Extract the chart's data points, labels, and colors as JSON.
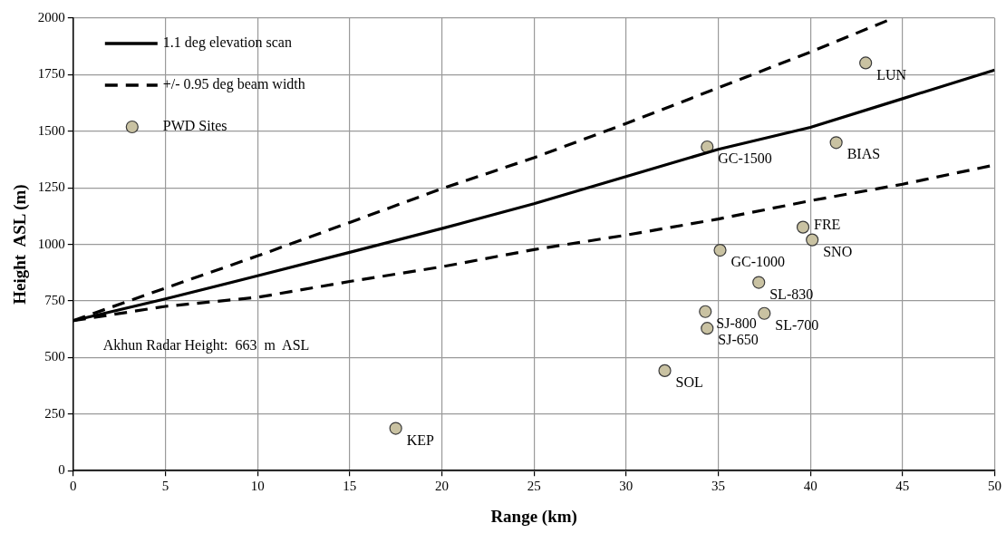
{
  "chart_data": {
    "type": "line",
    "xlabel": "Range (km)",
    "ylabel": "Height  ASL (m)",
    "xlim": [
      0,
      50
    ],
    "xticks": [
      0,
      5,
      10,
      15,
      20,
      25,
      30,
      35,
      40,
      45,
      50
    ],
    "ylim": [
      0,
      2000
    ],
    "yticks": [
      0,
      250,
      500,
      750,
      1000,
      1250,
      1500,
      1750,
      2000
    ],
    "grid": true,
    "legend": "top left",
    "series": [
      {
        "name": "1.1 deg elevation scan",
        "color": "#000000",
        "line_style": "solid",
        "x": [
          0,
          5,
          10,
          15,
          20,
          25,
          30,
          35,
          40,
          45,
          50
        ],
        "values": [
          663,
          759,
          861,
          965,
          1070,
          1180,
          1300,
          1420,
          1517,
          1644,
          1771
        ]
      },
      {
        "name": "+/- 0.95 deg beam width",
        "color": "#000000",
        "line_style": "dashed",
        "x": [
          0,
          5,
          10,
          15,
          20,
          25,
          30,
          35,
          40,
          44.5
        ],
        "values": [
          663,
          807,
          949,
          1097,
          1246,
          1383,
          1534,
          1692,
          1850,
          2000
        ]
      },
      {
        "color": "#000000",
        "line_style": "dashed",
        "x": [
          0,
          5,
          10,
          15,
          20,
          25,
          30,
          35,
          40,
          45,
          50
        ],
        "values": [
          663,
          726,
          766,
          836,
          901,
          977,
          1041,
          1112,
          1193,
          1266,
          1351
        ]
      },
      {
        "name": "PWD Sites",
        "type": "scatter",
        "color": "#c9c2a2",
        "marker": "circle",
        "x": [
          43.0,
          41.4,
          34.4,
          39.6,
          40.1,
          35.1,
          37.2,
          34.3,
          37.5,
          34.4,
          32.1,
          17.5
        ],
        "values": [
          1802,
          1450,
          1431,
          1076,
          1020,
          974,
          832,
          703,
          695,
          629,
          442,
          187
        ]
      }
    ],
    "annotations": [
      "Akhun Radar Height:  663  m  ASL",
      {
        "text": "LUN",
        "x": 43.0,
        "y": 1802
      },
      {
        "text": "BIAS",
        "x": 41.4,
        "y": 1450
      },
      {
        "text": "GC-1500",
        "x": 34.4,
        "y": 1431
      },
      {
        "text": "FRE",
        "x": 39.6,
        "y": 1076
      },
      {
        "text": "SNO",
        "x": 40.1,
        "y": 1020
      },
      {
        "text": "GC-1000",
        "x": 35.1,
        "y": 974
      },
      {
        "text": "SL-830",
        "x": 37.2,
        "y": 832
      },
      {
        "text": "SJ-800",
        "x": 34.3,
        "y": 703
      },
      {
        "text": "SL-700",
        "x": 37.5,
        "y": 695
      },
      {
        "text": "SJ-650",
        "x": 34.4,
        "y": 629
      },
      {
        "text": "SOL",
        "x": 32.1,
        "y": 442
      },
      {
        "text": "KEP",
        "x": 17.5,
        "y": 187
      }
    ]
  }
}
